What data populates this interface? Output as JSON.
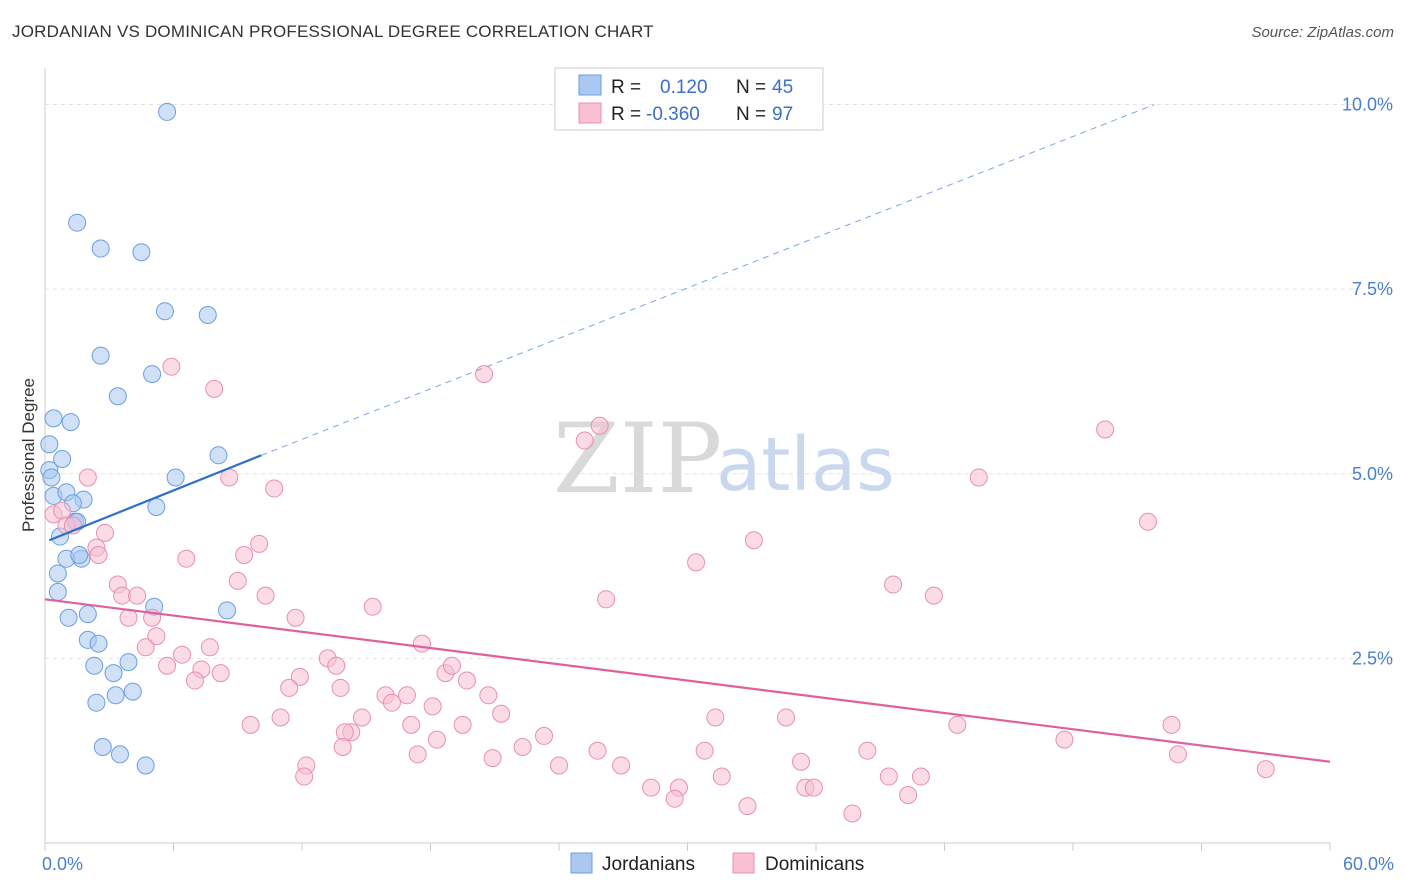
{
  "title": "JORDANIAN VS DOMINICAN PROFESSIONAL DEGREE CORRELATION CHART",
  "source": "Source: ZipAtlas.com",
  "watermark": {
    "zip": "ZIP",
    "atlas": "atlas"
  },
  "legend": {
    "r_label": "R =",
    "n_label": "N =",
    "rows": [
      {
        "r": "0.120",
        "n": "45",
        "color": "#aac8f0",
        "stroke": "#6b9ee0"
      },
      {
        "r": "-0.360",
        "n": "97",
        "color": "#f8c0d2",
        "stroke": "#e890ac"
      }
    ]
  },
  "chart_data": {
    "type": "scatter",
    "title": "JORDANIAN VS DOMINICAN PROFESSIONAL DEGREE CORRELATION CHART",
    "xlabel": "",
    "ylabel": "Professional Degree",
    "xlim": [
      0,
      60
    ],
    "ylim": [
      0,
      10.4
    ],
    "x_tick_labels": [
      {
        "value": 0,
        "label": "0.0%"
      },
      {
        "value": 60,
        "label": "60.0%"
      }
    ],
    "y_tick_labels": [
      {
        "value": 2.5,
        "label": "2.5%"
      },
      {
        "value": 5.0,
        "label": "5.0%"
      },
      {
        "value": 7.5,
        "label": "7.5%"
      },
      {
        "value": 10.0,
        "label": "10.0%"
      }
    ],
    "grid": true,
    "legend_position": "top-center",
    "series": [
      {
        "name": "Jordanians",
        "color": "#aac8f0",
        "stroke": "#6b9ee0",
        "trend": {
          "x0": 0.2,
          "y0": 4.1,
          "x1": 10.1,
          "y1": 5.25,
          "color": "#2f6fc9"
        },
        "trend_ext": {
          "x0": 10.1,
          "y0": 5.25,
          "x1": 51.8,
          "y1": 10.0
        },
        "points": [
          [
            5.7,
            9.9
          ],
          [
            1.5,
            8.4
          ],
          [
            2.6,
            8.05
          ],
          [
            4.5,
            8.0
          ],
          [
            5.6,
            7.2
          ],
          [
            7.6,
            7.15
          ],
          [
            2.6,
            6.6
          ],
          [
            5.0,
            6.35
          ],
          [
            3.4,
            6.05
          ],
          [
            0.4,
            5.75
          ],
          [
            1.2,
            5.7
          ],
          [
            0.2,
            5.4
          ],
          [
            0.8,
            5.2
          ],
          [
            8.1,
            5.25
          ],
          [
            0.2,
            5.05
          ],
          [
            0.3,
            4.95
          ],
          [
            6.1,
            4.95
          ],
          [
            0.4,
            4.7
          ],
          [
            1.0,
            4.75
          ],
          [
            1.8,
            4.65
          ],
          [
            1.3,
            4.6
          ],
          [
            5.2,
            4.55
          ],
          [
            1.4,
            4.35
          ],
          [
            1.5,
            4.35
          ],
          [
            0.7,
            4.15
          ],
          [
            1.0,
            3.85
          ],
          [
            1.7,
            3.85
          ],
          [
            0.6,
            3.65
          ],
          [
            0.6,
            3.4
          ],
          [
            5.1,
            3.2
          ],
          [
            1.1,
            3.05
          ],
          [
            2.0,
            3.1
          ],
          [
            8.5,
            3.15
          ],
          [
            2.0,
            2.75
          ],
          [
            2.5,
            2.7
          ],
          [
            3.9,
            2.45
          ],
          [
            2.3,
            2.4
          ],
          [
            3.2,
            2.3
          ],
          [
            3.3,
            2.0
          ],
          [
            4.1,
            2.05
          ],
          [
            2.4,
            1.9
          ],
          [
            2.7,
            1.3
          ],
          [
            3.5,
            1.2
          ],
          [
            4.7,
            1.05
          ],
          [
            1.6,
            3.9
          ]
        ]
      },
      {
        "name": "Dominicans",
        "color": "#f8c0d2",
        "stroke": "#e890ac",
        "trend": {
          "x0": 0.0,
          "y0": 3.3,
          "x1": 60.0,
          "y1": 1.1,
          "color": "#e0609a"
        },
        "points": [
          [
            0.4,
            4.45
          ],
          [
            0.8,
            4.5
          ],
          [
            1.0,
            4.3
          ],
          [
            1.3,
            4.3
          ],
          [
            2.0,
            4.95
          ],
          [
            2.8,
            4.2
          ],
          [
            2.4,
            4.0
          ],
          [
            2.5,
            3.9
          ],
          [
            5.9,
            6.45
          ],
          [
            7.9,
            6.15
          ],
          [
            8.6,
            4.95
          ],
          [
            10.7,
            4.8
          ],
          [
            20.5,
            6.35
          ],
          [
            25.2,
            5.45
          ],
          [
            25.9,
            5.65
          ],
          [
            49.5,
            5.6
          ],
          [
            43.6,
            4.95
          ],
          [
            51.5,
            4.35
          ],
          [
            33.1,
            4.1
          ],
          [
            30.4,
            3.8
          ],
          [
            39.6,
            3.5
          ],
          [
            41.5,
            3.35
          ],
          [
            26.2,
            3.3
          ],
          [
            10.0,
            4.05
          ],
          [
            9.3,
            3.9
          ],
          [
            6.6,
            3.85
          ],
          [
            9.0,
            3.55
          ],
          [
            3.4,
            3.5
          ],
          [
            3.6,
            3.35
          ],
          [
            4.3,
            3.35
          ],
          [
            10.3,
            3.35
          ],
          [
            15.3,
            3.2
          ],
          [
            11.7,
            3.05
          ],
          [
            5.0,
            3.05
          ],
          [
            3.9,
            3.05
          ],
          [
            5.2,
            2.8
          ],
          [
            4.7,
            2.65
          ],
          [
            7.7,
            2.65
          ],
          [
            6.4,
            2.55
          ],
          [
            17.6,
            2.7
          ],
          [
            13.2,
            2.5
          ],
          [
            13.6,
            2.4
          ],
          [
            5.7,
            2.4
          ],
          [
            7.3,
            2.35
          ],
          [
            8.2,
            2.3
          ],
          [
            18.7,
            2.3
          ],
          [
            19.0,
            2.4
          ],
          [
            19.7,
            2.2
          ],
          [
            11.9,
            2.25
          ],
          [
            7.0,
            2.2
          ],
          [
            11.4,
            2.1
          ],
          [
            13.8,
            2.1
          ],
          [
            15.9,
            2.0
          ],
          [
            16.9,
            2.0
          ],
          [
            20.7,
            2.0
          ],
          [
            16.2,
            1.9
          ],
          [
            18.1,
            1.85
          ],
          [
            21.3,
            1.75
          ],
          [
            14.8,
            1.7
          ],
          [
            11.0,
            1.7
          ],
          [
            9.6,
            1.6
          ],
          [
            17.1,
            1.6
          ],
          [
            19.5,
            1.6
          ],
          [
            14.3,
            1.5
          ],
          [
            14.0,
            1.5
          ],
          [
            23.3,
            1.45
          ],
          [
            18.3,
            1.4
          ],
          [
            13.9,
            1.3
          ],
          [
            22.3,
            1.3
          ],
          [
            31.3,
            1.7
          ],
          [
            34.6,
            1.7
          ],
          [
            42.6,
            1.6
          ],
          [
            52.6,
            1.6
          ],
          [
            47.6,
            1.4
          ],
          [
            38.4,
            1.25
          ],
          [
            30.8,
            1.25
          ],
          [
            17.4,
            1.2
          ],
          [
            20.9,
            1.15
          ],
          [
            24.0,
            1.05
          ],
          [
            25.8,
            1.25
          ],
          [
            26.9,
            1.05
          ],
          [
            12.2,
            1.05
          ],
          [
            12.1,
            0.9
          ],
          [
            31.6,
            0.9
          ],
          [
            35.3,
            1.1
          ],
          [
            52.9,
            1.2
          ],
          [
            57.0,
            1.0
          ],
          [
            39.4,
            0.9
          ],
          [
            40.9,
            0.9
          ],
          [
            35.5,
            0.75
          ],
          [
            35.9,
            0.75
          ],
          [
            28.3,
            0.75
          ],
          [
            29.6,
            0.75
          ],
          [
            29.4,
            0.6
          ],
          [
            32.8,
            0.5
          ],
          [
            40.3,
            0.65
          ],
          [
            37.7,
            0.4
          ]
        ]
      }
    ]
  }
}
